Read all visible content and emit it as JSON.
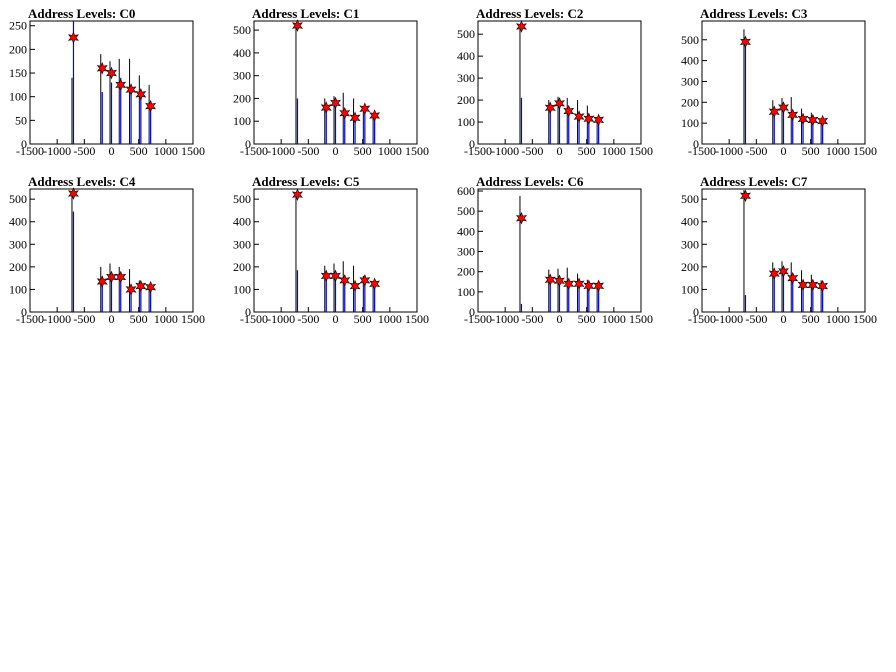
{
  "chart_data": [
    {
      "type": "bar",
      "title": "Address Levels: C0",
      "xlim": [
        -1500,
        1500
      ],
      "ylim": [
        0,
        260
      ],
      "xticks": [
        -1500,
        -1000,
        -500,
        0,
        500,
        1000,
        1500
      ],
      "yticks": [
        0,
        50,
        100,
        150,
        200,
        250
      ],
      "peaks": [
        {
          "x": -700,
          "y": 225
        },
        {
          "x": -170,
          "y": 160
        },
        {
          "x": 0,
          "y": 150
        },
        {
          "x": 170,
          "y": 125
        },
        {
          "x": 360,
          "y": 115
        },
        {
          "x": 540,
          "y": 105
        },
        {
          "x": 720,
          "y": 80
        }
      ],
      "black_heights": [
        140,
        190,
        175,
        180,
        180,
        145,
        125
      ],
      "blue_heights": [
        285,
        110,
        130,
        140,
        125,
        115,
        80
      ]
    },
    {
      "type": "bar",
      "title": "Address Levels: C1",
      "xlim": [
        -1500,
        1500
      ],
      "ylim": [
        0,
        540
      ],
      "xticks": [
        -1500,
        -1000,
        -500,
        0,
        500,
        1000,
        1500
      ],
      "yticks": [
        0,
        100,
        200,
        300,
        400,
        500
      ],
      "peaks": [
        {
          "x": -700,
          "y": 520
        },
        {
          "x": -170,
          "y": 160
        },
        {
          "x": 0,
          "y": 180
        },
        {
          "x": 170,
          "y": 135
        },
        {
          "x": 360,
          "y": 115
        },
        {
          "x": 540,
          "y": 155
        },
        {
          "x": 720,
          "y": 125
        }
      ],
      "black_heights": [
        520,
        200,
        210,
        225,
        200,
        160,
        130
      ],
      "blue_heights": [
        200,
        160,
        180,
        135,
        115,
        155,
        125
      ]
    },
    {
      "type": "bar",
      "title": "Address Levels: C2",
      "xlim": [
        -1500,
        1500
      ],
      "ylim": [
        0,
        560
      ],
      "xticks": [
        -1500,
        -1000,
        -500,
        0,
        500,
        1000,
        1500
      ],
      "yticks": [
        0,
        100,
        200,
        300,
        400,
        500
      ],
      "peaks": [
        {
          "x": -700,
          "y": 535
        },
        {
          "x": -170,
          "y": 165
        },
        {
          "x": 0,
          "y": 185
        },
        {
          "x": 170,
          "y": 150
        },
        {
          "x": 360,
          "y": 125
        },
        {
          "x": 540,
          "y": 115
        },
        {
          "x": 720,
          "y": 110
        }
      ],
      "black_heights": [
        535,
        200,
        215,
        210,
        200,
        175,
        120
      ],
      "blue_heights": [
        210,
        165,
        185,
        150,
        125,
        115,
        110
      ]
    },
    {
      "type": "bar",
      "title": "Address Levels: C3",
      "xlim": [
        -1500,
        1500
      ],
      "ylim": [
        0,
        590
      ],
      "xticks": [
        -1500,
        -1000,
        -500,
        0,
        500,
        1000,
        1500
      ],
      "yticks": [
        0,
        100,
        200,
        300,
        400,
        500
      ],
      "peaks": [
        {
          "x": -700,
          "y": 490
        },
        {
          "x": -170,
          "y": 155
        },
        {
          "x": 0,
          "y": 175
        },
        {
          "x": 170,
          "y": 140
        },
        {
          "x": 360,
          "y": 120
        },
        {
          "x": 540,
          "y": 115
        },
        {
          "x": 720,
          "y": 110
        }
      ],
      "black_heights": [
        550,
        210,
        220,
        225,
        170,
        150,
        120
      ],
      "blue_heights": [
        490,
        155,
        175,
        140,
        120,
        115,
        110
      ]
    },
    {
      "type": "bar",
      "title": "Address Levels: C4",
      "xlim": [
        -1500,
        1500
      ],
      "ylim": [
        0,
        545
      ],
      "xticks": [
        -1500,
        -1000,
        -500,
        0,
        500,
        1000,
        1500
      ],
      "yticks": [
        0,
        100,
        200,
        300,
        400,
        500
      ],
      "peaks": [
        {
          "x": -700,
          "y": 525
        },
        {
          "x": -170,
          "y": 135
        },
        {
          "x": 0,
          "y": 155
        },
        {
          "x": 170,
          "y": 155
        },
        {
          "x": 360,
          "y": 100
        },
        {
          "x": 540,
          "y": 115
        },
        {
          "x": 720,
          "y": 110
        }
      ],
      "black_heights": [
        525,
        200,
        215,
        200,
        190,
        140,
        120
      ],
      "blue_heights": [
        445,
        135,
        155,
        155,
        100,
        115,
        110
      ]
    },
    {
      "type": "bar",
      "title": "Address Levels: C5",
      "xlim": [
        -1500,
        1500
      ],
      "ylim": [
        0,
        545
      ],
      "xticks": [
        -1500,
        -1000,
        -500,
        0,
        500,
        1000,
        1500
      ],
      "yticks": [
        0,
        100,
        200,
        300,
        400,
        500
      ],
      "peaks": [
        {
          "x": -700,
          "y": 520
        },
        {
          "x": -170,
          "y": 160
        },
        {
          "x": 0,
          "y": 160
        },
        {
          "x": 170,
          "y": 140
        },
        {
          "x": 360,
          "y": 115
        },
        {
          "x": 540,
          "y": 140
        },
        {
          "x": 720,
          "y": 125
        }
      ],
      "black_heights": [
        520,
        205,
        215,
        225,
        205,
        160,
        130
      ],
      "blue_heights": [
        185,
        160,
        160,
        140,
        115,
        140,
        125
      ]
    },
    {
      "type": "bar",
      "title": "Address Levels: C6",
      "xlim": [
        -1500,
        1500
      ],
      "ylim": [
        0,
        610
      ],
      "xticks": [
        -1500,
        -1000,
        -500,
        0,
        500,
        1000,
        1500
      ],
      "yticks": [
        0,
        100,
        200,
        300,
        400,
        500,
        600
      ],
      "peaks": [
        {
          "x": -700,
          "y": 465
        },
        {
          "x": -170,
          "y": 160
        },
        {
          "x": 0,
          "y": 155
        },
        {
          "x": 170,
          "y": 140
        },
        {
          "x": 360,
          "y": 140
        },
        {
          "x": 540,
          "y": 130
        },
        {
          "x": 720,
          "y": 130
        }
      ],
      "black_heights": [
        575,
        210,
        215,
        220,
        190,
        160,
        145
      ],
      "blue_heights": [
        40,
        160,
        155,
        140,
        140,
        130,
        130
      ]
    },
    {
      "type": "bar",
      "title": "Address Levels: C7",
      "xlim": [
        -1500,
        1500
      ],
      "ylim": [
        0,
        545
      ],
      "xticks": [
        -1500,
        -1000,
        -500,
        0,
        500,
        1000,
        1500
      ],
      "yticks": [
        0,
        100,
        200,
        300,
        400,
        500
      ],
      "peaks": [
        {
          "x": -700,
          "y": 515
        },
        {
          "x": -170,
          "y": 170
        },
        {
          "x": 0,
          "y": 180
        },
        {
          "x": 170,
          "y": 150
        },
        {
          "x": 360,
          "y": 120
        },
        {
          "x": 540,
          "y": 120
        },
        {
          "x": 720,
          "y": 115
        }
      ],
      "black_heights": [
        540,
        220,
        225,
        220,
        185,
        165,
        140
      ],
      "blue_heights": [
        75,
        170,
        180,
        150,
        120,
        120,
        115
      ]
    }
  ],
  "colors": {
    "black_series": "#000000",
    "blue_series": "#0000ff",
    "marker": "#ff0000"
  }
}
